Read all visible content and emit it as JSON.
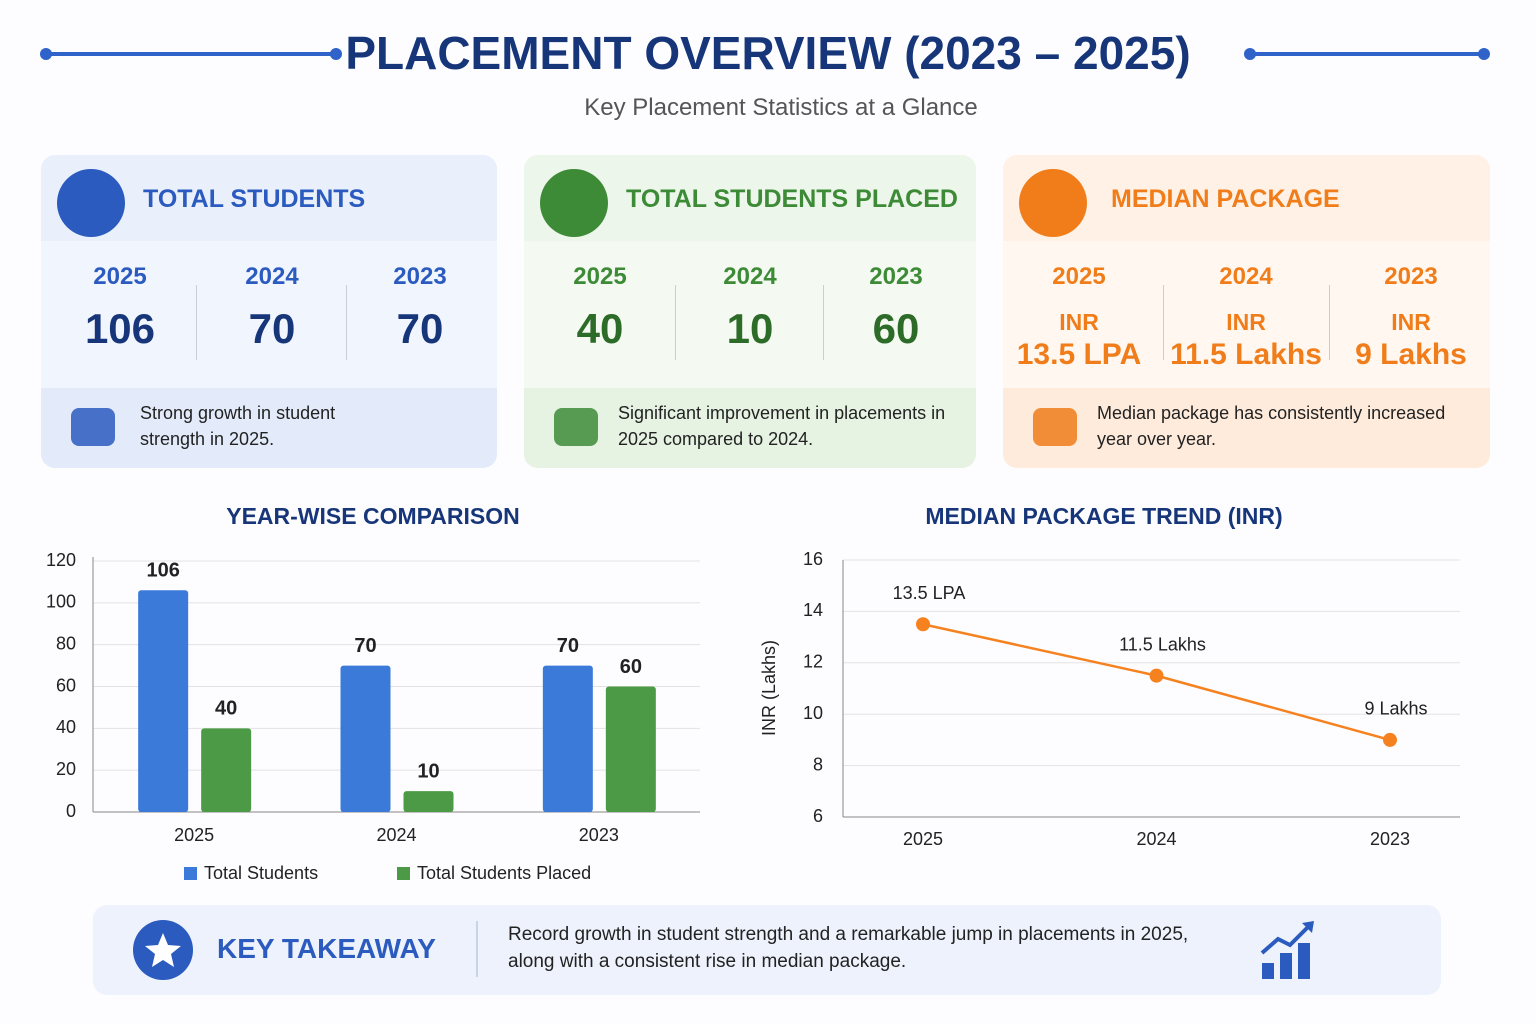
{
  "header": {
    "title": "PLACEMENT OVERVIEW (2023 – 2025)",
    "subtitle": "Key Placement Statistics at a Glance"
  },
  "cards": [
    {
      "title": "TOTAL STUDENTS",
      "years": [
        "2025",
        "2024",
        "2023"
      ],
      "values": [
        106,
        70,
        70
      ],
      "note": "Strong growth in student strength in 2025."
    },
    {
      "title": "TOTAL STUDENTS PLACED",
      "years": [
        "2025",
        "2024",
        "2023"
      ],
      "values": [
        40,
        10,
        60
      ],
      "note": "Significant improvement in placements in 2025 compared to 2024."
    },
    {
      "title": "MEDIAN PACKAGE",
      "years": [
        "2025",
        "2024",
        "2023"
      ],
      "units": [
        "INR",
        "INR",
        "INR"
      ],
      "values": [
        "13.5 LPA",
        "11.5 Lakhs",
        "9 Lakhs"
      ],
      "note": "Median package has consistently increased year over year."
    }
  ],
  "chart_data": [
    {
      "type": "bar",
      "title": "YEAR-WISE COMPARISON",
      "categories": [
        "2025",
        "2024",
        "2023"
      ],
      "series": [
        {
          "name": "Total Students",
          "color": "#3b7ad9",
          "values": [
            106,
            70,
            70
          ]
        },
        {
          "name": "Total Students Placed",
          "color": "#4c9a45",
          "values": [
            40,
            10,
            60
          ]
        }
      ],
      "ylim": [
        0,
        120
      ],
      "yticks": [
        0,
        20,
        40,
        60,
        80,
        100,
        120
      ],
      "grid": true,
      "legend": "bottom"
    },
    {
      "type": "line",
      "title": "MEDIAN PACKAGE TREND (INR)",
      "y_label": "INR (Lakhs)",
      "categories": [
        "2025",
        "2024",
        "2023"
      ],
      "values": [
        13.5,
        11.5,
        9
      ],
      "value_labels": [
        "13.5 LPA",
        "11.5 Lakhs",
        "9 Lakhs"
      ],
      "color": "#f5821f",
      "ylim": [
        6,
        16
      ],
      "yticks": [
        6,
        8,
        10,
        12,
        14,
        16
      ],
      "grid": true
    }
  ],
  "takeaway": {
    "title": "KEY TAKEAWAY",
    "text": "Record growth in student strength and a remarkable jump in placements in 2025, along with a consistent rise in median package."
  }
}
